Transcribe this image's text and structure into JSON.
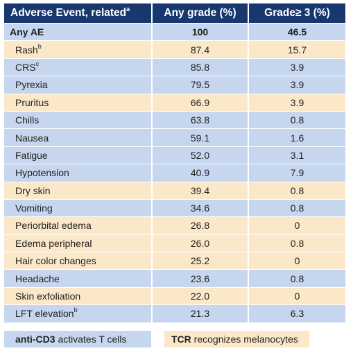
{
  "table": {
    "headers": [
      {
        "text": "Adverse Event, related",
        "sup": "a"
      },
      {
        "text": "Any grade (%)",
        "sup": ""
      },
      {
        "text": "Grade≥ 3 (%)",
        "sup": ""
      }
    ],
    "rows": [
      {
        "name": "Any AE",
        "sup": "",
        "any": "100",
        "g3": "46.5",
        "style": "anyae"
      },
      {
        "name": "Rash",
        "sup": "b",
        "any": "87.4",
        "g3": "15.7",
        "style": "tan"
      },
      {
        "name": "CRS",
        "sup": "c",
        "any": "85.8",
        "g3": "3.9",
        "style": "blue"
      },
      {
        "name": "Pyrexia",
        "sup": "",
        "any": "79.5",
        "g3": "3.9",
        "style": "blue"
      },
      {
        "name": "Pruritus",
        "sup": "",
        "any": "66.9",
        "g3": "3.9",
        "style": "tan"
      },
      {
        "name": "Chills",
        "sup": "",
        "any": "63.8",
        "g3": "0.8",
        "style": "blue"
      },
      {
        "name": "Nausea",
        "sup": "",
        "any": "59.1",
        "g3": "1.6",
        "style": "blue"
      },
      {
        "name": "Fatigue",
        "sup": "",
        "any": "52.0",
        "g3": "3.1",
        "style": "blue"
      },
      {
        "name": "Hypotension",
        "sup": "",
        "any": "40.9",
        "g3": "7.9",
        "style": "blue"
      },
      {
        "name": "Dry skin",
        "sup": "",
        "any": "39.4",
        "g3": "0.8",
        "style": "tan"
      },
      {
        "name": "Vomiting",
        "sup": "",
        "any": "34.6",
        "g3": "0.8",
        "style": "blue"
      },
      {
        "name": "Periorbital edema",
        "sup": "",
        "any": "26.8",
        "g3": "0",
        "style": "tan"
      },
      {
        "name": "Edema peripheral",
        "sup": "",
        "any": "26.0",
        "g3": "0.8",
        "style": "tan"
      },
      {
        "name": "Hair color changes",
        "sup": "",
        "any": "25.2",
        "g3": "0",
        "style": "tan"
      },
      {
        "name": "Headache",
        "sup": "",
        "any": "23.6",
        "g3": "0.8",
        "style": "blue"
      },
      {
        "name": "Skin exfoliation",
        "sup": "",
        "any": "22.0",
        "g3": "0",
        "style": "tan"
      },
      {
        "name": "LFT elevation",
        "sup": "b",
        "any": "21.3",
        "g3": "6.3",
        "style": "blue"
      }
    ]
  },
  "legend": {
    "blue": {
      "bold": "anti-CD3",
      "rest": " activates T cells"
    },
    "tan": {
      "bold": "TCR",
      "rest": " recognizes melanocytes"
    }
  },
  "colors": {
    "header_bg": "#17376e",
    "blue_row": "#c6d6ee",
    "tan_row": "#fbe8c9"
  }
}
